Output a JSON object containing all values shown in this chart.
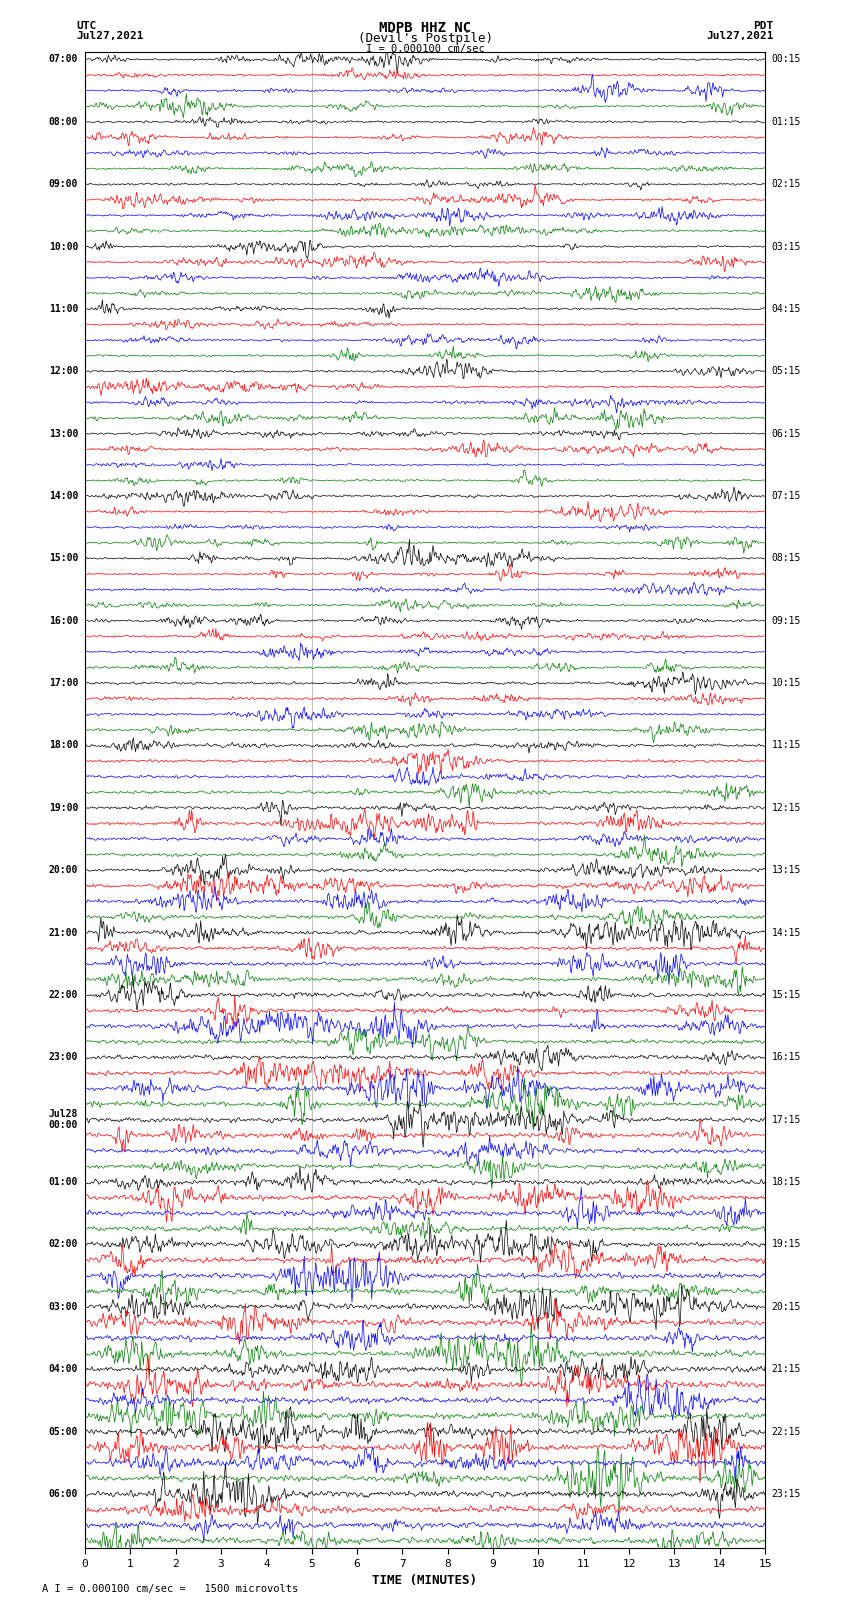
{
  "title_line1": "MDPB HHZ NC",
  "title_line2": "(Devil's Postpile)",
  "scale_text": "I = 0.000100 cm/sec",
  "bottom_scale_text": "A I = 0.000100 cm/sec =   1500 microvolts",
  "left_header": "UTC\nJul27,2021",
  "right_header": "PDT\nJul27,2021",
  "xlabel": "TIME (MINUTES)",
  "xmin": 0,
  "xmax": 15,
  "xticks": [
    0,
    1,
    2,
    3,
    4,
    5,
    6,
    7,
    8,
    9,
    10,
    11,
    12,
    13,
    14,
    15
  ],
  "background_color": "#ffffff",
  "trace_colors": [
    "#000000",
    "#ff0000",
    "#0000ff",
    "#008000"
  ],
  "num_traces": 96,
  "traces_per_hour": 4,
  "noise_scale": 0.35,
  "line_width": 0.5,
  "fig_width": 8.5,
  "fig_height": 16.13,
  "left_times_utc": [
    "07:00",
    "",
    "",
    "",
    "08:00",
    "",
    "",
    "",
    "09:00",
    "",
    "",
    "",
    "10:00",
    "",
    "",
    "",
    "11:00",
    "",
    "",
    "",
    "12:00",
    "",
    "",
    "",
    "13:00",
    "",
    "",
    "",
    "14:00",
    "",
    "",
    "",
    "15:00",
    "",
    "",
    "",
    "16:00",
    "",
    "",
    "",
    "17:00",
    "",
    "",
    "",
    "18:00",
    "",
    "",
    "",
    "19:00",
    "",
    "",
    "",
    "20:00",
    "",
    "",
    "",
    "21:00",
    "",
    "",
    "",
    "22:00",
    "",
    "",
    "",
    "23:00",
    "",
    "",
    "",
    "Jul28\n00:00",
    "",
    "",
    "",
    "01:00",
    "",
    "",
    "",
    "02:00",
    "",
    "",
    "",
    "03:00",
    "",
    "",
    "",
    "04:00",
    "",
    "",
    "",
    "05:00",
    "",
    "",
    "",
    "06:00",
    "",
    "",
    ""
  ],
  "right_times_pdt": [
    "00:15",
    "",
    "",
    "",
    "01:15",
    "",
    "",
    "",
    "02:15",
    "",
    "",
    "",
    "03:15",
    "",
    "",
    "",
    "04:15",
    "",
    "",
    "",
    "05:15",
    "",
    "",
    "",
    "06:15",
    "",
    "",
    "",
    "07:15",
    "",
    "",
    "",
    "08:15",
    "",
    "",
    "",
    "09:15",
    "",
    "",
    "",
    "10:15",
    "",
    "",
    "",
    "11:15",
    "",
    "",
    "",
    "12:15",
    "",
    "",
    "",
    "13:15",
    "",
    "",
    "",
    "14:15",
    "",
    "",
    "",
    "15:15",
    "",
    "",
    "",
    "16:15",
    "",
    "",
    "",
    "17:15",
    "",
    "",
    "",
    "18:15",
    "",
    "",
    "",
    "19:15",
    "",
    "",
    "",
    "20:15",
    "",
    "",
    "",
    "21:15",
    "",
    "",
    "",
    "22:15",
    "",
    "",
    "",
    "23:15",
    "",
    "",
    ""
  ],
  "gray_line_interval": 5,
  "gray_line_color": "#aaaaaa",
  "major_label_rows": [
    0,
    4,
    8,
    12,
    16,
    20,
    24,
    28,
    32,
    36,
    40,
    44,
    48,
    52,
    56,
    60,
    64,
    68,
    72,
    76,
    80,
    84,
    88,
    92
  ]
}
